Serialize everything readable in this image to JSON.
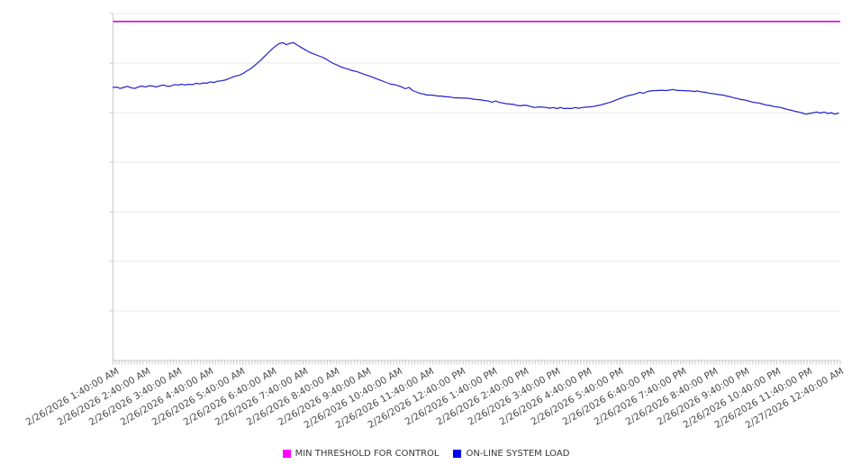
{
  "chart_data": {
    "type": "line",
    "title": "",
    "xlabel": "",
    "ylabel": "",
    "y_axis": {
      "tick_labels": [],
      "ylim": [
        0,
        100
      ],
      "gridline_count": 7
    },
    "x_axis": {
      "label_rotation_deg": -30,
      "minor_tick_count": 241,
      "tick_labels": [
        "2/26/2026 1:40:00 AM",
        "2/26/2026 2:40:00 AM",
        "2/26/2026 3:40:00 AM",
        "2/26/2026 4:40:00 AM",
        "2/26/2026 5:40:00 AM",
        "2/26/2026 6:40:00 AM",
        "2/26/2026 7:40:00 AM",
        "2/26/2026 8:40:00 AM",
        "2/26/2026 9:40:00 AM",
        "2/26/2026 10:40:00 AM",
        "2/26/2026 11:40:00 AM",
        "2/26/2026 12:40:00 PM",
        "2/26/2026 1:40:00 PM",
        "2/26/2026 2:40:00 PM",
        "2/26/2026 3:40:00 PM",
        "2/26/2026 4:40:00 PM",
        "2/26/2026 5:40:00 PM",
        "2/26/2026 6:40:00 PM",
        "2/26/2026 7:40:00 PM",
        "2/26/2026 8:40:00 PM",
        "2/26/2026 9:40:00 PM",
        "2/26/2026 10:40:00 PM",
        "2/26/2026 11:40:00 PM",
        "2/27/2026 12:40:00 AM"
      ]
    },
    "legend_position": "bottom-center",
    "colors": {
      "grid": "#e9e9e9",
      "axis": "#c9c9c9",
      "tick_label": "#4a4a4a"
    },
    "series": [
      {
        "name": "MIN THRESHOLD FOR CONTROL",
        "type": "threshold-line",
        "color": "#E100E1",
        "swatch_color": "#FF00FF",
        "value": 97.7
      },
      {
        "name": "ON-LINE SYSTEM LOAD",
        "type": "line",
        "color": "#2222CC",
        "swatch_color": "#0000EE",
        "values": [
          78.7,
          78.8,
          78.4,
          78.7,
          79.0,
          78.6,
          78.4,
          78.8,
          79.1,
          78.8,
          79.2,
          79.1,
          78.8,
          79.2,
          79.4,
          79.0,
          79.1,
          79.5,
          79.4,
          79.6,
          79.4,
          79.6,
          79.5,
          79.9,
          79.7,
          80.0,
          79.9,
          80.3,
          80.1,
          80.5,
          80.6,
          80.8,
          81.2,
          81.6,
          82.0,
          82.2,
          82.7,
          83.4,
          84.0,
          84.8,
          85.7,
          86.6,
          87.7,
          88.7,
          89.7,
          90.6,
          91.3,
          91.6,
          91.0,
          91.4,
          91.6,
          90.9,
          90.3,
          89.7,
          89.1,
          88.6,
          88.2,
          87.8,
          87.4,
          86.9,
          86.2,
          85.6,
          85.2,
          84.7,
          84.3,
          84.0,
          83.6,
          83.4,
          83.1,
          82.7,
          82.3,
          82.0,
          81.6,
          81.2,
          80.8,
          80.4,
          80.0,
          79.6,
          79.5,
          79.2,
          78.8,
          78.3,
          78.7,
          77.8,
          77.4,
          77.0,
          76.8,
          76.5,
          76.5,
          76.4,
          76.2,
          76.2,
          76.0,
          76.0,
          75.8,
          75.7,
          75.7,
          75.6,
          75.6,
          75.5,
          75.3,
          75.2,
          75.1,
          74.9,
          74.8,
          74.4,
          74.8,
          74.4,
          74.2,
          74.0,
          73.9,
          73.8,
          73.5,
          73.4,
          73.6,
          73.4,
          73.1,
          72.9,
          73.1,
          73.0,
          72.9,
          72.7,
          72.9,
          72.6,
          72.9,
          72.6,
          72.7,
          72.6,
          72.9,
          72.7,
          72.9,
          73.0,
          73.1,
          73.2,
          73.4,
          73.6,
          73.9,
          74.2,
          74.5,
          74.9,
          75.3,
          75.7,
          76.1,
          76.4,
          76.6,
          76.9,
          77.3,
          77.0,
          77.5,
          77.7,
          77.8,
          77.8,
          77.9,
          77.8,
          77.9,
          78.1,
          77.9,
          77.8,
          77.8,
          77.7,
          77.7,
          77.5,
          77.7,
          77.4,
          77.3,
          77.1,
          76.9,
          76.8,
          76.6,
          76.5,
          76.2,
          76.0,
          75.7,
          75.5,
          75.2,
          75.1,
          74.8,
          74.5,
          74.3,
          74.2,
          73.9,
          73.6,
          73.5,
          73.2,
          73.1,
          72.9,
          72.6,
          72.3,
          72.1,
          71.8,
          71.6,
          71.3,
          71.0,
          71.2,
          71.4,
          71.6,
          71.3,
          71.6,
          71.2,
          71.4,
          71.0,
          71.3
        ]
      }
    ]
  }
}
